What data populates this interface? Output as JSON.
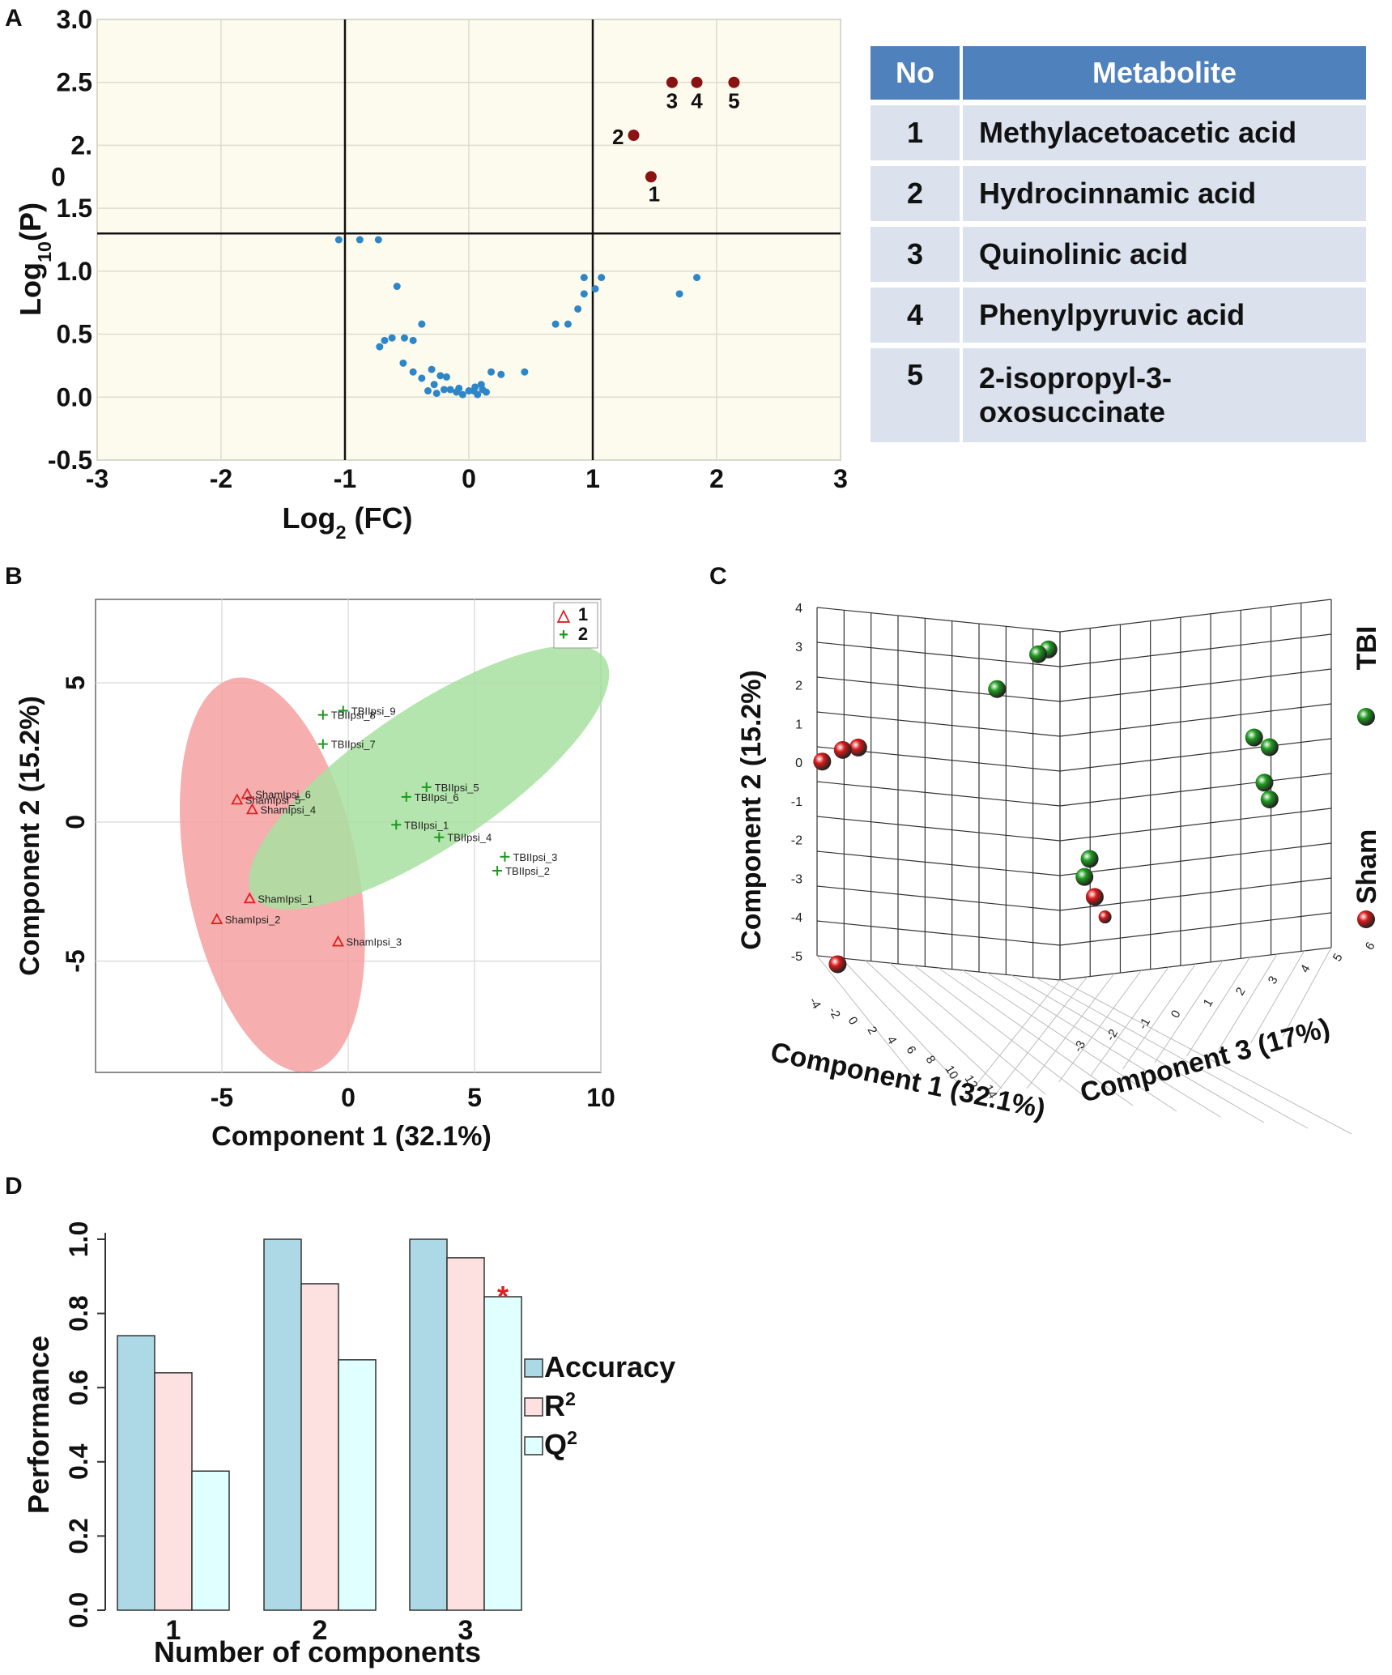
{
  "panels": {
    "a": "A",
    "b": "B",
    "c": "C",
    "d": "D"
  },
  "chart_data": [
    {
      "type": "scatter",
      "panel": "A",
      "title": "",
      "xlabel": "Log",
      "xlabel_sub": "2",
      "xlabel_suffix": " (FC)",
      "ylabel": "Log",
      "ylabel_sub": "10",
      "ylabel_suffix": "(P)",
      "xlim": [
        -3,
        3
      ],
      "ylim": [
        -0.5,
        3.0
      ],
      "xticks": [
        "-3",
        "-2",
        "-1",
        "0",
        "1",
        "2",
        "3"
      ],
      "yticks": [
        "-0.5",
        "0.0",
        "0.5",
        "1.0",
        "1.5",
        "2.",
        "2.5",
        "3.0"
      ],
      "ytick_extra": "0",
      "threshold_lines": {
        "x": [
          -1,
          1
        ],
        "y": 1.3
      },
      "colors": {
        "background": "#fdfbee",
        "significant": "#8b1212",
        "other": "#2e86c9"
      },
      "significant": [
        {
          "label": "1",
          "x": 1.47,
          "y": 1.75
        },
        {
          "label": "2",
          "x": 1.33,
          "y": 2.08
        },
        {
          "label": "3",
          "x": 1.64,
          "y": 2.5
        },
        {
          "label": "4",
          "x": 1.84,
          "y": 2.5
        },
        {
          "label": "5",
          "x": 2.14,
          "y": 2.5
        }
      ],
      "other_points": [
        [
          -1.05,
          1.25
        ],
        [
          -0.88,
          1.25
        ],
        [
          -0.73,
          1.25
        ],
        [
          -0.58,
          0.88
        ],
        [
          -0.62,
          0.47
        ],
        [
          -0.52,
          0.47
        ],
        [
          -0.45,
          0.45
        ],
        [
          -0.72,
          0.4
        ],
        [
          -0.68,
          0.45
        ],
        [
          -0.38,
          0.58
        ],
        [
          -0.53,
          0.27
        ],
        [
          -0.45,
          0.2
        ],
        [
          -0.38,
          0.15
        ],
        [
          -0.3,
          0.22
        ],
        [
          -0.28,
          0.1
        ],
        [
          -0.23,
          0.17
        ],
        [
          -0.18,
          0.16
        ],
        [
          -0.15,
          0.06
        ],
        [
          -0.1,
          0.04
        ],
        [
          -0.05,
          0.02
        ],
        [
          0,
          0.05
        ],
        [
          0.05,
          0.08
        ],
        [
          0.1,
          0.1
        ],
        [
          0.14,
          0.04
        ],
        [
          0.18,
          0.2
        ],
        [
          0.26,
          0.18
        ],
        [
          0.45,
          0.2
        ],
        [
          0.07,
          0.02
        ],
        [
          -0.08,
          0.07
        ],
        [
          -0.2,
          0.06
        ],
        [
          -0.26,
          0.03
        ],
        [
          -0.33,
          0.05
        ],
        [
          0.04,
          0.05
        ],
        [
          0.11,
          0.06
        ],
        [
          0.7,
          0.58
        ],
        [
          0.8,
          0.58
        ],
        [
          0.88,
          0.7
        ],
        [
          0.93,
          0.82
        ],
        [
          0.93,
          0.95
        ],
        [
          1.02,
          0.86
        ],
        [
          1.07,
          0.95
        ],
        [
          1.7,
          0.82
        ],
        [
          1.84,
          0.95
        ]
      ]
    },
    {
      "type": "table",
      "panel": "A",
      "columns": [
        "No",
        "Metabolite"
      ],
      "rows": [
        {
          "no": "1",
          "name": "Methylacetoacetic acid"
        },
        {
          "no": "2",
          "name": "Hydrocinnamic acid"
        },
        {
          "no": "3",
          "name": "Quinolinic acid"
        },
        {
          "no": "4",
          "name": "Phenylpyruvic acid"
        },
        {
          "no": "5",
          "name": "2-isopropyl-3-",
          "name2": "oxosuccinate"
        }
      ]
    },
    {
      "type": "scatter",
      "panel": "B",
      "xlabel": "Component 1 (32.1%)",
      "ylabel": "Component  2 (15.2%)",
      "xlim": [
        -10,
        10
      ],
      "ylim": [
        -9,
        8
      ],
      "xticks": [
        "-5",
        "0",
        "5",
        "10"
      ],
      "yticks": [
        "-5",
        "0",
        "5"
      ],
      "legend": [
        {
          "symbol": "△",
          "label": "1",
          "color": "#e02020"
        },
        {
          "symbol": "+",
          "label": "2",
          "color": "#1a9a1a"
        }
      ],
      "colors": {
        "sham": "#e02020",
        "tbi": "#1a9a1a",
        "sham_ellipse": "#f4a0a0",
        "tbi_ellipse": "#a8e0a0"
      },
      "sham": [
        {
          "label": "ShamIpsi_6",
          "x": -4.0,
          "y": 1.0
        },
        {
          "label": "ShamIpsi_5",
          "x": -4.4,
          "y": 0.8
        },
        {
          "label": "ShamIpsi_4",
          "x": -3.8,
          "y": 0.45
        },
        {
          "label": "ShamIpsi_1",
          "x": -3.9,
          "y": -2.75
        },
        {
          "label": "ShamIpsi_2",
          "x": -5.2,
          "y": -3.5
        },
        {
          "label": "ShamIpsi_3",
          "x": -0.4,
          "y": -4.3
        }
      ],
      "tbi": [
        {
          "label": "TBIIpsi_9",
          "x": -0.2,
          "y": 4.0
        },
        {
          "label": "TBIIpsi_8",
          "x": -1.0,
          "y": 3.85
        },
        {
          "label": "TBIIpsi_7",
          "x": -1.0,
          "y": 2.8
        },
        {
          "label": "TBIIpsi_5",
          "x": 3.1,
          "y": 1.25
        },
        {
          "label": "TBIIpsi_6",
          "x": 2.3,
          "y": 0.9
        },
        {
          "label": "TBIIpsi_1",
          "x": 1.9,
          "y": -0.1
        },
        {
          "label": "TBIIpsi_4",
          "x": 3.6,
          "y": -0.55
        },
        {
          "label": "TBIIpsi_3",
          "x": 6.2,
          "y": -1.25
        },
        {
          "label": "TBIIpsi_2",
          "x": 5.9,
          "y": -1.75
        }
      ],
      "ellipses": {
        "sham": {
          "cx": -3.0,
          "cy": -1.9,
          "rx": 3.4,
          "ry": 7.2,
          "angle": -11
        },
        "tbi": {
          "cx": 3.2,
          "cy": 1.6,
          "rx": 8.4,
          "ry": 2.5,
          "angle": 34
        }
      }
    },
    {
      "type": "scatter",
      "panel": "C",
      "xlabel": "Component 1 (32.1%)",
      "ylabel": "Component 2 (15.2%)",
      "zlabel": "Component 3 (17%)",
      "yticks": [
        "4",
        "3",
        "2",
        "1",
        "0",
        "-1",
        "-2",
        "-3",
        "-4",
        "-5"
      ],
      "xticks": [
        "-4",
        "-2",
        "0",
        "2",
        "4",
        "6",
        "8",
        "10",
        "12",
        "14"
      ],
      "zticks": [
        "-3",
        "-2",
        "-1",
        "0",
        "1",
        "2",
        "3",
        "4",
        "5",
        "6"
      ],
      "legend": [
        {
          "label": "TBI",
          "color": "#1f9a1f"
        },
        {
          "label": "Sham",
          "color": "#d81a1a"
        }
      ],
      "colors": {
        "tbi": "#1f9a1f",
        "sham": "#d81a1a"
      },
      "points": [
        {
          "group": "tbi",
          "y": 3.9,
          "u": 0.45
        },
        {
          "group": "tbi",
          "y": 3.75,
          "u": 0.43
        },
        {
          "group": "tbi",
          "y": 2.75,
          "u": 0.35
        },
        {
          "group": "sham",
          "y": 0.9,
          "u": 0.08
        },
        {
          "group": "sham",
          "y": 0.8,
          "u": 0.05
        },
        {
          "group": "sham",
          "y": 0.45,
          "u": 0.01
        },
        {
          "group": "tbi",
          "y": 1.1,
          "u": 0.85
        },
        {
          "group": "tbi",
          "y": 0.8,
          "u": 0.88
        },
        {
          "group": "tbi",
          "y": -0.1,
          "u": 0.87
        },
        {
          "group": "tbi",
          "y": -0.55,
          "u": 0.88
        },
        {
          "group": "tbi",
          "y": -1.5,
          "u": 0.53
        },
        {
          "group": "tbi",
          "y": -1.95,
          "u": 0.52
        },
        {
          "group": "sham",
          "y": -2.5,
          "u": 0.54
        },
        {
          "group": "sham",
          "y": -3.05,
          "u": 0.56
        },
        {
          "group": "sham",
          "y": -4.75,
          "u": 0.04
        }
      ]
    },
    {
      "type": "bar",
      "panel": "D",
      "categories": [
        "1",
        "2",
        "3"
      ],
      "series": [
        {
          "name": "Accuracy",
          "values": [
            0.74,
            1.0,
            1.0
          ],
          "color": "#add8e6"
        },
        {
          "name": "R",
          "sup": "2",
          "values": [
            0.64,
            0.88,
            0.95
          ],
          "color": "#fde1e1"
        },
        {
          "name": "Q",
          "sup": "2",
          "values": [
            0.375,
            0.675,
            0.845
          ],
          "color": "#e0ffff"
        }
      ],
      "xlabel": "Number of components",
      "ylabel": "Performance",
      "ylim": [
        0,
        1.0
      ],
      "yticks": [
        "0.0",
        "0.2",
        "0.4",
        "0.6",
        "0.8",
        "1.0"
      ],
      "annotation": {
        "text": "*",
        "color": "#e02020",
        "category": "3",
        "series": "Q"
      }
    }
  ]
}
